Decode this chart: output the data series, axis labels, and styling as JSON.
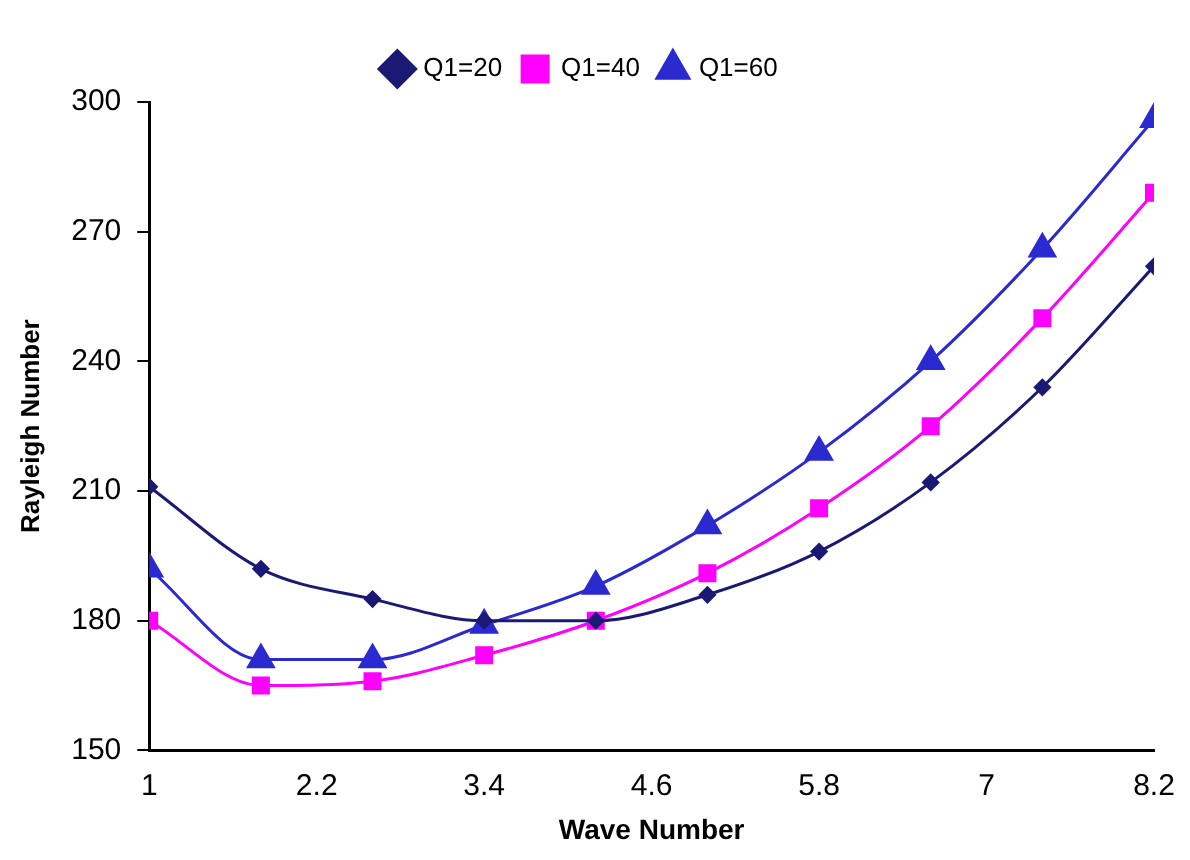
{
  "chart_data": {
    "type": "line",
    "xlabel": "Wave Number",
    "ylabel": "Rayleigh Number",
    "x": [
      1,
      1.8,
      2.6,
      3.4,
      4.2,
      5.0,
      5.8,
      6.6,
      7.4,
      8.2
    ],
    "series": [
      {
        "name": "Q1=20",
        "color": "#1a1a75",
        "marker": "diamond",
        "values": [
          211,
          192,
          185,
          180,
          180,
          186,
          196,
          212,
          234,
          262
        ]
      },
      {
        "name": "Q1=40",
        "color": "#ff00ff",
        "marker": "square",
        "values": [
          180,
          165,
          166,
          172,
          180,
          191,
          206,
          225,
          250,
          279
        ]
      },
      {
        "name": "Q1=60",
        "color": "#2a2ad0",
        "marker": "triangle",
        "values": [
          192,
          171,
          171,
          179,
          188,
          202,
          219,
          240,
          266,
          296
        ]
      }
    ],
    "xlim": [
      1,
      8.2
    ],
    "xticks": [
      1,
      2.2,
      3.4,
      4.6,
      5.8,
      7,
      8.2
    ],
    "ylim": [
      150,
      300
    ],
    "yticks": [
      150,
      180,
      210,
      240,
      270,
      300
    ],
    "grid": false,
    "legend": "top",
    "line_style": "solid"
  }
}
